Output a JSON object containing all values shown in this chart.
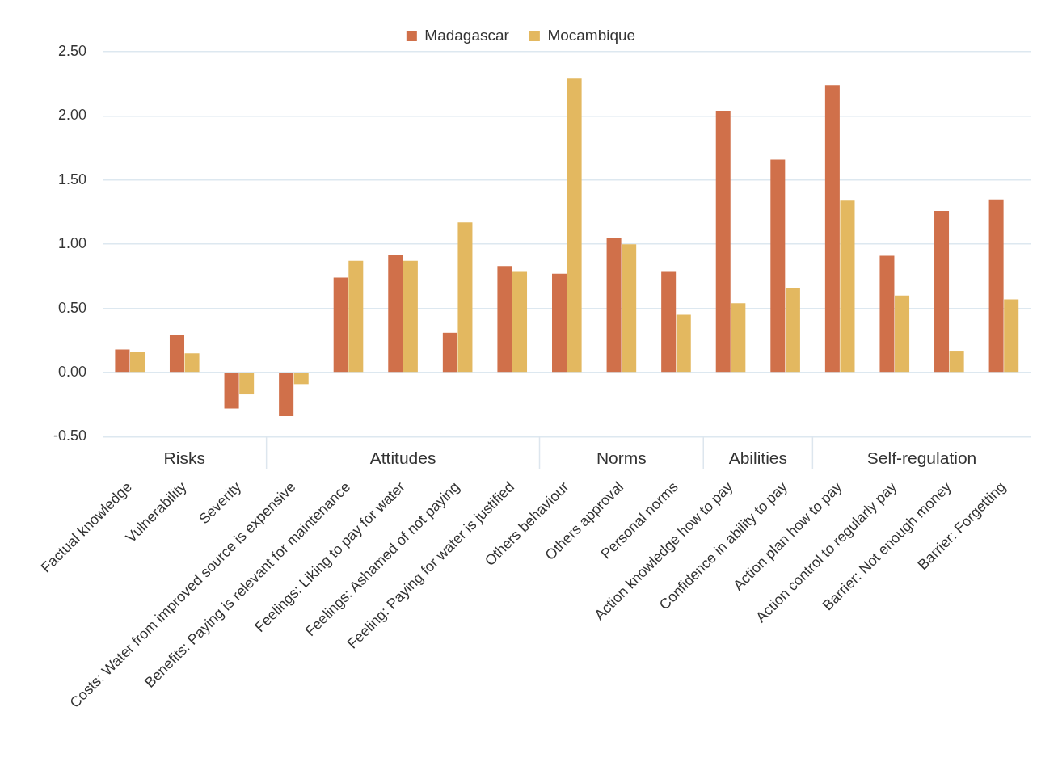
{
  "chart_data": {
    "type": "bar",
    "categories": [
      "Factual knowledge",
      "Vulnerability",
      "Severity",
      "Costs: Water from improved source is expensive",
      "Benefits: Paying is relevant for maintenance",
      "Feelings: Liking to pay for water",
      "Feelings: Ashamed of not paying",
      "Feeling: Paying for water is justified",
      "Others behaviour",
      "Others approval",
      "Personal norms",
      "Action knowledge how to pay",
      "Confidence in ability to pay",
      "Action plan how to pay",
      "Action control to regularly pay",
      "Barrier: Not enough money",
      "Barrier: Forgetting"
    ],
    "series": [
      {
        "name": "Madagascar",
        "color": "#d0704a",
        "values": [
          0.18,
          0.29,
          -0.28,
          -0.34,
          0.74,
          0.92,
          0.31,
          0.83,
          0.77,
          1.05,
          0.79,
          2.04,
          1.66,
          2.24,
          0.91,
          1.26,
          1.35
        ]
      },
      {
        "name": "Mocambique",
        "color": "#e3b860",
        "values": [
          0.16,
          0.15,
          -0.17,
          -0.09,
          0.87,
          0.87,
          1.17,
          0.79,
          2.29,
          1.0,
          0.45,
          0.54,
          0.66,
          1.34,
          0.6,
          0.17,
          0.57
        ]
      }
    ],
    "ylim": [
      -0.5,
      2.5
    ],
    "yticks": [
      {
        "value": -0.5,
        "label": "-0.50"
      },
      {
        "value": 0,
        "label": "0.00"
      },
      {
        "value": 0.5,
        "label": "0.50"
      },
      {
        "value": 1,
        "label": "1.00"
      },
      {
        "value": 1.5,
        "label": "1.50"
      },
      {
        "value": 2,
        "label": "2.00"
      },
      {
        "value": 2.5,
        "label": "2.50"
      }
    ],
    "grid": "y",
    "legend": "top",
    "annotations": [
      "Risks",
      "Attitudes",
      "Norms",
      "Abilities",
      "Self-regulation"
    ]
  }
}
